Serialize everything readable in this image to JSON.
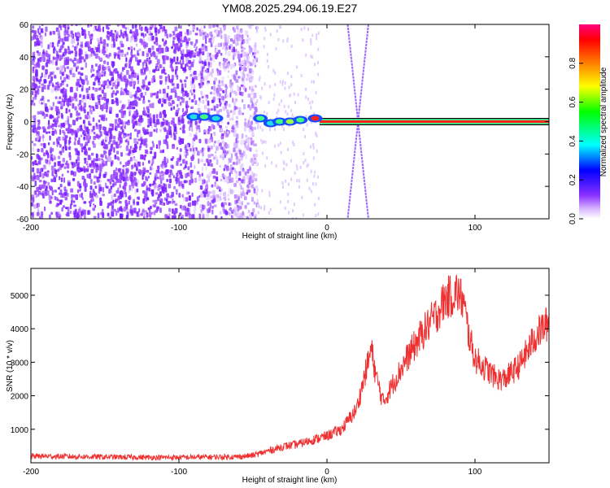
{
  "figure": {
    "title": "YM08.2025.294.06.19.E27"
  },
  "chart_data": [
    {
      "type": "heatmap",
      "xlabel": "Height of straight line (km)",
      "ylabel": "Frequency (Hz)",
      "xlim": [
        -200,
        150
      ],
      "ylim": [
        -60,
        60
      ],
      "x_ticks": [
        -200,
        -100,
        0,
        100
      ],
      "y_ticks": [
        -60,
        -40,
        -20,
        0,
        20,
        40,
        60
      ],
      "grid": false,
      "colorbar": {
        "label": "Normalized spectral amplitude",
        "range": [
          0,
          1
        ],
        "ticks": [
          0.0,
          0.2,
          0.4,
          0.6,
          0.8
        ],
        "tick_labels": [
          "0.0",
          "0.2",
          "0.4",
          "0.6",
          "0.8"
        ],
        "colormap": [
          "#ffffff",
          "#d9b8ff",
          "#7a1fff",
          "#0000ff",
          "#00ffff",
          "#00ff00",
          "#ffff00",
          "#ff8000",
          "#ff0000",
          "#ff0080"
        ]
      },
      "features": {
        "noise_region_x": [
          -200,
          -48
        ],
        "carrier_band": {
          "x_start": -5,
          "x_end": 150,
          "freq_hz": 0,
          "amplitude": 0.95
        },
        "bright_blobs": [
          {
            "x": -90,
            "y": 3,
            "amplitude": 0.35
          },
          {
            "x": -83,
            "y": 3,
            "amplitude": 0.45
          },
          {
            "x": -75,
            "y": 2,
            "amplitude": 0.4
          },
          {
            "x": -45,
            "y": 2,
            "amplitude": 0.45
          },
          {
            "x": -38,
            "y": -1,
            "amplitude": 0.4
          },
          {
            "x": -32,
            "y": 0,
            "amplitude": 0.5
          },
          {
            "x": -25,
            "y": 0,
            "amplitude": 0.55
          },
          {
            "x": -18,
            "y": 1,
            "amplitude": 0.5
          },
          {
            "x": -8,
            "y": 2,
            "amplitude": 0.85
          }
        ],
        "x_crossing": {
          "center_x": 22,
          "center_y": 0,
          "x_at_top": [
            14,
            28
          ],
          "x_at_bottom": [
            14,
            28
          ]
        }
      }
    },
    {
      "type": "line",
      "xlabel": "Height of straight line (km)",
      "ylabel": "SNR (10 * v/v)",
      "xlim": [
        -200,
        150
      ],
      "ylim": [
        0,
        5800
      ],
      "x_ticks": [
        -200,
        -100,
        0,
        100
      ],
      "y_ticks": [
        1000,
        2000,
        3000,
        4000,
        5000
      ],
      "grid": false,
      "color": "#f03030",
      "series": [
        {
          "x": [
            -200,
            -180,
            -160,
            -140,
            -120,
            -100,
            -80,
            -60,
            -50,
            -40,
            -30,
            -20,
            -10,
            0,
            10,
            20,
            25,
            30,
            33,
            38,
            45,
            55,
            65,
            75,
            80,
            85,
            88,
            92,
            96,
            100,
            105,
            110,
            115,
            120,
            125,
            130,
            135,
            140,
            145,
            150
          ],
          "values": [
            200,
            190,
            180,
            170,
            160,
            160,
            170,
            180,
            220,
            350,
            480,
            550,
            680,
            800,
            1000,
            1600,
            2500,
            3400,
            2600,
            1800,
            2400,
            3200,
            3900,
            4500,
            4900,
            5000,
            5100,
            4800,
            3800,
            3100,
            2900,
            2700,
            2500,
            2500,
            2700,
            2900,
            3300,
            3700,
            4000,
            4200
          ]
        }
      ]
    }
  ]
}
